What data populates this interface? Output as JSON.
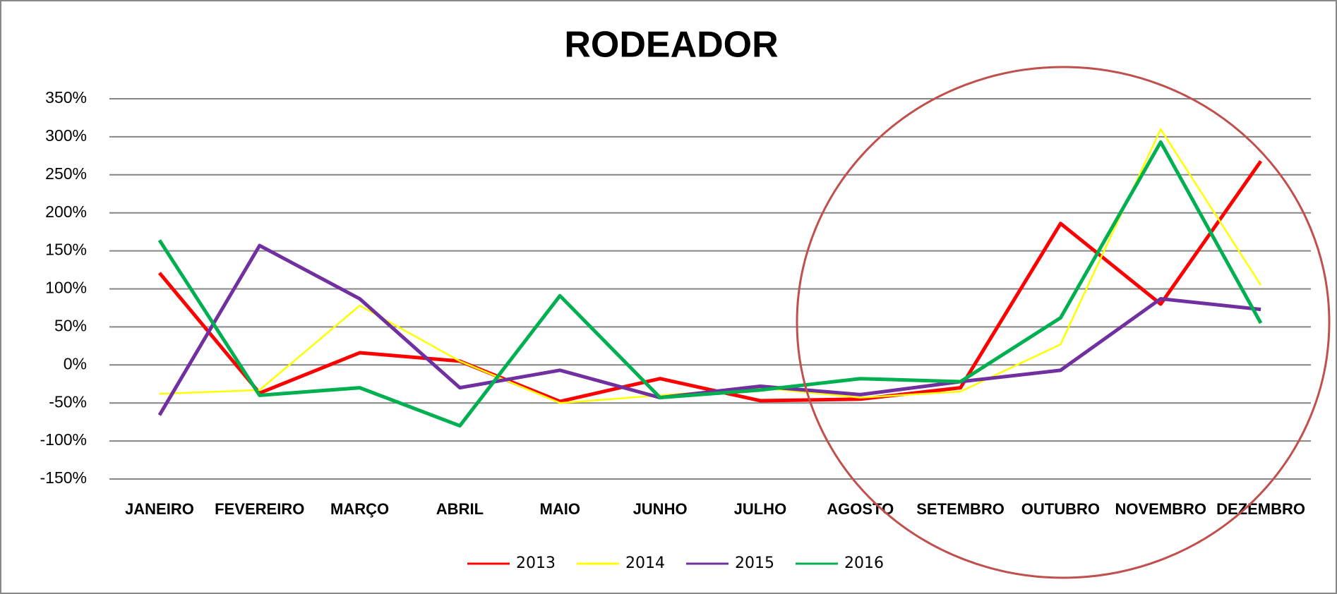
{
  "chart_data": {
    "type": "line",
    "title": "RODEADOR",
    "categories": [
      "JANEIRO",
      "FEVEREIRO",
      "MARÇO",
      "ABRIL",
      "MAIO",
      "JUNHO",
      "JULHO",
      "AGOSTO",
      "SETEMBRO",
      "OUTUBRO",
      "NOVEMBRO",
      "DEZEMBRO"
    ],
    "series": [
      {
        "name": "2013",
        "color": "#ff0000",
        "line_width": 5,
        "values": [
          121,
          -37,
          16,
          5,
          -48,
          -18,
          -47,
          -45,
          -30,
          186,
          80,
          268
        ]
      },
      {
        "name": "2014",
        "color": "#ffff00",
        "line_width": 2.5,
        "values": [
          -38,
          -33,
          78,
          5,
          -50,
          -40,
          -30,
          -43,
          -35,
          27,
          310,
          105
        ]
      },
      {
        "name": "2015",
        "color": "#7030a0",
        "line_width": 5,
        "values": [
          -66,
          157,
          87,
          -30,
          -7,
          -43,
          -28,
          -39,
          -22,
          -7,
          87,
          73
        ]
      },
      {
        "name": "2016",
        "color": "#00b050",
        "line_width": 5,
        "values": [
          164,
          -40,
          -30,
          -80,
          91,
          -43,
          -33,
          -18,
          -22,
          62,
          293,
          55
        ]
      }
    ],
    "ylim": [
      -150,
      350
    ],
    "yticks": [
      {
        "value": -150,
        "label": "-150%"
      },
      {
        "value": -100,
        "label": "-100%"
      },
      {
        "value": -50,
        "label": "-50%"
      },
      {
        "value": 0,
        "label": "0%"
      },
      {
        "value": 50,
        "label": "50%"
      },
      {
        "value": 100,
        "label": "100%"
      },
      {
        "value": 150,
        "label": "150%"
      },
      {
        "value": 200,
        "label": "200%"
      },
      {
        "value": 250,
        "label": "250%"
      },
      {
        "value": 300,
        "label": "300%"
      },
      {
        "value": 350,
        "label": "350%"
      }
    ],
    "grid": true,
    "legend": "bottom"
  }
}
